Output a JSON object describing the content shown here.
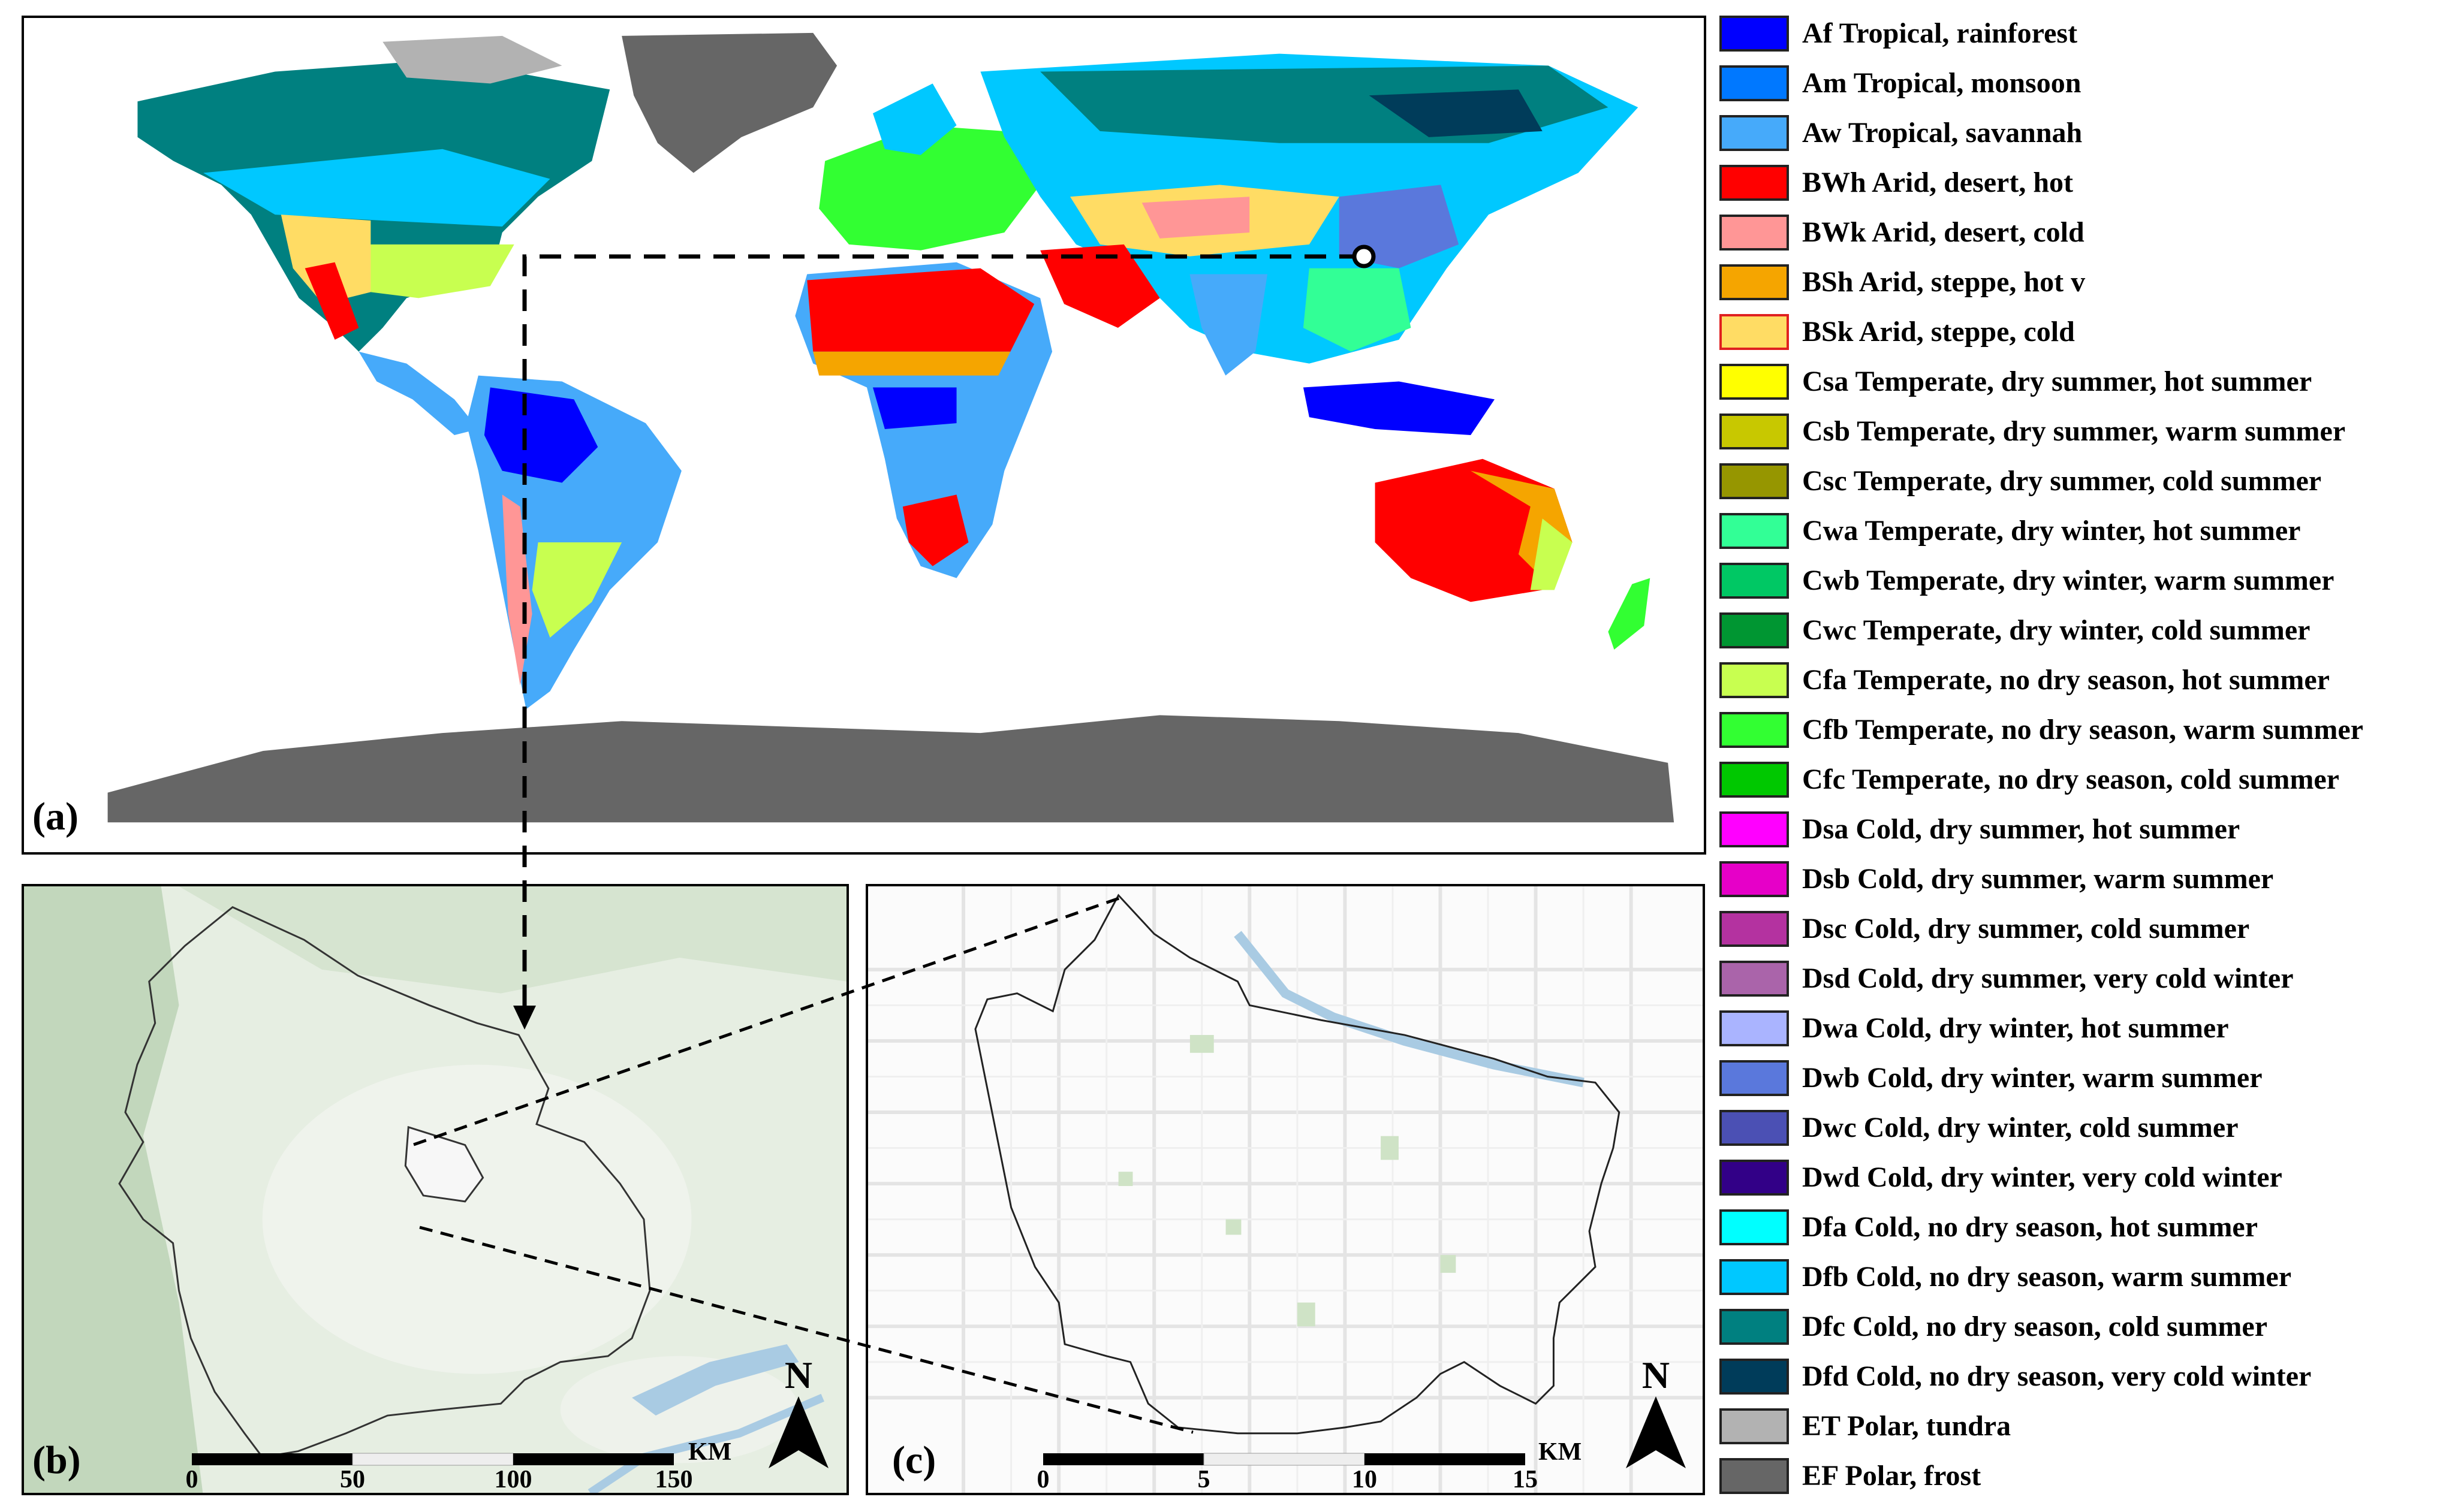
{
  "panels": {
    "a": {
      "label": "(a)"
    },
    "b": {
      "label": "(b)",
      "scale_ticks": [
        "0",
        "50",
        "100",
        "150"
      ],
      "scale_unit": "KM",
      "north_label": "N"
    },
    "c": {
      "label": "(c)",
      "scale_ticks": [
        "0",
        "5",
        "10",
        "15"
      ],
      "scale_unit": "KM",
      "north_label": "N"
    }
  },
  "legend": [
    {
      "code": "Af",
      "text": "Af Tropical, rainforest",
      "color": "#0000ff"
    },
    {
      "code": "Am",
      "text": "Am Tropical, monsoon",
      "color": "#0078ff"
    },
    {
      "code": "Aw",
      "text": "Aw Tropical, savannah",
      "color": "#46aafa"
    },
    {
      "code": "BWh",
      "text": "BWh Arid, desert, hot",
      "color": "#ff0000"
    },
    {
      "code": "BWk",
      "text": "BWk Arid, desert, cold",
      "color": "#ff9696"
    },
    {
      "code": "BSh",
      "text": "BSh Arid, steppe, hot v",
      "color": "#f5a500"
    },
    {
      "code": "BSk",
      "text": "BSk Arid, steppe, cold",
      "color": "#ffdc64"
    },
    {
      "code": "Csa",
      "text": "Csa Temperate, dry summer, hot summer",
      "color": "#ffff00"
    },
    {
      "code": "Csb",
      "text": "Csb Temperate, dry summer, warm summer",
      "color": "#c8c800"
    },
    {
      "code": "Csc",
      "text": "Csc Temperate, dry summer, cold summer",
      "color": "#969600"
    },
    {
      "code": "Cwa",
      "text": "Cwa Temperate, dry winter, hot summer",
      "color": "#32ff96"
    },
    {
      "code": "Cwb",
      "text": "Cwb Temperate, dry winter, warm summer",
      "color": "#00c864"
    },
    {
      "code": "Cwc",
      "text": "Cwc Temperate, dry winter, cold summer",
      "color": "#009632"
    },
    {
      "code": "Cfa",
      "text": "Cfa Temperate, no dry season, hot summer",
      "color": "#c8ff50"
    },
    {
      "code": "Cfb",
      "text": "Cfb Temperate, no dry season, warm summer",
      "color": "#32ff32"
    },
    {
      "code": "Cfc",
      "text": "Cfc Temperate, no dry season, cold summer",
      "color": "#00c800"
    },
    {
      "code": "Dsa",
      "text": "Dsa Cold, dry summer, hot summer",
      "color": "#ff00ff"
    },
    {
      "code": "Dsb",
      "text": "Dsb Cold, dry summer, warm summer",
      "color": "#e600c8"
    },
    {
      "code": "Dsc",
      "text": "Dsc Cold, dry summer, cold summer",
      "color": "#b432a0"
    },
    {
      "code": "Dsd",
      "text": "Dsd Cold, dry summer, very cold winter",
      "color": "#aa64aa"
    },
    {
      "code": "Dwa",
      "text": "Dwa Cold, dry winter, hot summer",
      "color": "#aab4ff"
    },
    {
      "code": "Dwb",
      "text": "Dwb Cold, dry winter, warm summer",
      "color": "#5a78dc"
    },
    {
      "code": "Dwc",
      "text": "Dwc Cold, dry winter, cold summer",
      "color": "#4b50b4"
    },
    {
      "code": "Dwd",
      "text": "Dwd Cold, dry winter, very cold winter",
      "color": "#320087"
    },
    {
      "code": "Dfa",
      "text": "Dfa Cold, no dry season, hot summer",
      "color": "#00ffff"
    },
    {
      "code": "Dfb",
      "text": "Dfb Cold, no dry season, warm summer",
      "color": "#00c8ff"
    },
    {
      "code": "Dfc",
      "text": "Dfc Cold, no dry season, cold summer",
      "color": "#008080"
    },
    {
      "code": "Dfd",
      "text": "Dfd Cold, no dry season, very cold winter",
      "color": "#003c5a"
    },
    {
      "code": "ET",
      "text": "ET Polar, tundra",
      "color": "#b2b2b2"
    },
    {
      "code": "EF",
      "text": "EF Polar, frost",
      "color": "#666666"
    }
  ]
}
